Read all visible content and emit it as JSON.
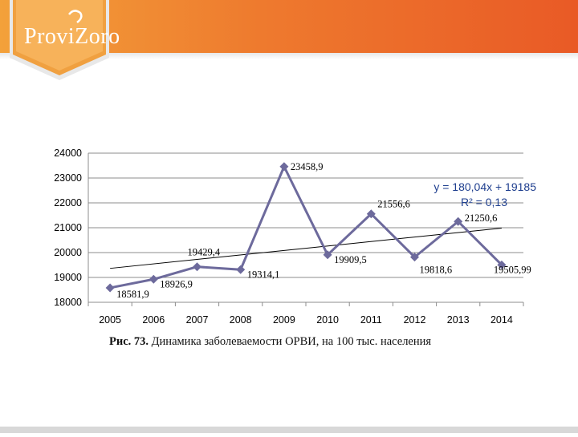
{
  "logo": {
    "text": "ProviZoro",
    "icon": "provizoro-logo"
  },
  "colors": {
    "header_start": "#f3a13a",
    "header_end": "#e95a26",
    "series": "#6d6a9c",
    "trend": "#000000",
    "equation": "#1f3f8f"
  },
  "chart_data": {
    "type": "line",
    "x": [
      2005,
      2006,
      2007,
      2008,
      2009,
      2010,
      2011,
      2012,
      2013,
      2014
    ],
    "y_tick_labels": [
      "18000",
      "19000",
      "20000",
      "21000",
      "22000",
      "23000",
      "24000"
    ],
    "ylim": [
      18000,
      24000
    ],
    "series": [
      {
        "values": [
          18581.9,
          18926.9,
          19429.4,
          19314.1,
          23458.9,
          19909.5,
          21556.6,
          19818.6,
          21250.6,
          19505.99
        ],
        "labels": [
          "18581,9",
          "18926,9",
          "19429,4",
          "19314,1",
          "23458,9",
          "19909,5",
          "21556,6",
          "19818,6",
          "21250,6",
          "19505,99"
        ],
        "marker": "diamond"
      }
    ],
    "trendline": {
      "type": "linear",
      "equation": "y = 180,04x + 19185",
      "r2": "R² = 0,13"
    },
    "grid": "horizontal"
  },
  "caption": {
    "prefix": "Рис. 73.",
    "text": " Динамика заболеваемости ОРВИ, на 100 тыс. населения"
  }
}
